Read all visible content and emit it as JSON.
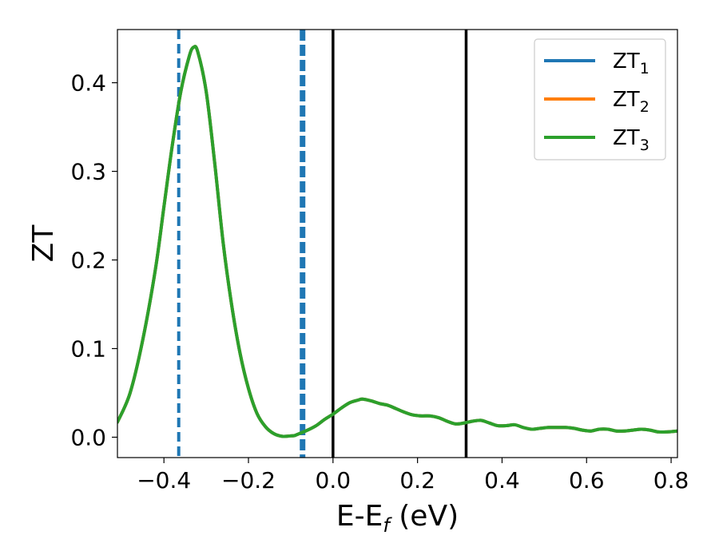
{
  "chart_data": {
    "type": "line",
    "xlabel": {
      "main": "E-E",
      "sub": "f",
      "suffix": " (eV)"
    },
    "ylabel": "ZT",
    "xlim": [
      -0.51,
      0.815
    ],
    "ylim": [
      -0.023,
      0.46
    ],
    "xticks": [
      -0.4,
      -0.2,
      0.0,
      0.2,
      0.4,
      0.6,
      0.8
    ],
    "xtick_labels": [
      "−0.4",
      "−0.2",
      "0.0",
      "0.2",
      "0.4",
      "0.6",
      "0.8"
    ],
    "yticks": [
      0.0,
      0.1,
      0.2,
      0.3,
      0.4
    ],
    "ytick_labels": [
      "0.0",
      "0.1",
      "0.2",
      "0.3",
      "0.4"
    ],
    "grid": false,
    "legend_position": "top-right",
    "series": [
      {
        "name": "ZT",
        "sub": "1",
        "color": "#1f77b4"
      },
      {
        "name": "ZT",
        "sub": "2",
        "color": "#ff7f0e"
      },
      {
        "name": "ZT",
        "sub": "3",
        "color": "#2ca02c"
      }
    ],
    "curve": {
      "x": [
        -0.51,
        -0.48,
        -0.45,
        -0.42,
        -0.4,
        -0.38,
        -0.36,
        -0.34,
        -0.33,
        -0.32,
        -0.3,
        -0.28,
        -0.26,
        -0.24,
        -0.22,
        -0.2,
        -0.18,
        -0.16,
        -0.14,
        -0.12,
        -0.1,
        -0.09,
        -0.08,
        -0.06,
        -0.04,
        -0.02,
        0.0,
        0.02,
        0.04,
        0.06,
        0.07,
        0.09,
        0.11,
        0.13,
        0.15,
        0.17,
        0.19,
        0.21,
        0.23,
        0.25,
        0.27,
        0.29,
        0.31,
        0.33,
        0.35,
        0.37,
        0.39,
        0.41,
        0.43,
        0.45,
        0.47,
        0.49,
        0.51,
        0.53,
        0.55,
        0.57,
        0.59,
        0.61,
        0.63,
        0.65,
        0.67,
        0.69,
        0.71,
        0.73,
        0.75,
        0.77,
        0.79,
        0.815
      ],
      "y": [
        0.017,
        0.05,
        0.11,
        0.19,
        0.26,
        0.33,
        0.39,
        0.43,
        0.44,
        0.435,
        0.39,
        0.31,
        0.22,
        0.15,
        0.095,
        0.055,
        0.027,
        0.012,
        0.004,
        0.001,
        0.0015,
        0.002,
        0.004,
        0.008,
        0.013,
        0.02,
        0.026,
        0.033,
        0.039,
        0.042,
        0.043,
        0.041,
        0.038,
        0.036,
        0.032,
        0.028,
        0.025,
        0.024,
        0.024,
        0.022,
        0.018,
        0.015,
        0.016,
        0.018,
        0.019,
        0.016,
        0.013,
        0.013,
        0.014,
        0.011,
        0.009,
        0.01,
        0.011,
        0.011,
        0.011,
        0.01,
        0.008,
        0.007,
        0.009,
        0.009,
        0.007,
        0.007,
        0.008,
        0.009,
        0.008,
        0.006,
        0.006,
        0.007
      ]
    },
    "vlines": [
      {
        "x": -0.365,
        "color": "#1f77b4",
        "style": "dashed",
        "width": 4
      },
      {
        "x": -0.072,
        "color": "#1f77b4",
        "style": "dashed",
        "width": 7
      },
      {
        "x": 0.0,
        "color": "#000000",
        "style": "solid",
        "width": 3.5
      },
      {
        "x": 0.315,
        "color": "#000000",
        "style": "solid",
        "width": 3.5
      }
    ]
  }
}
